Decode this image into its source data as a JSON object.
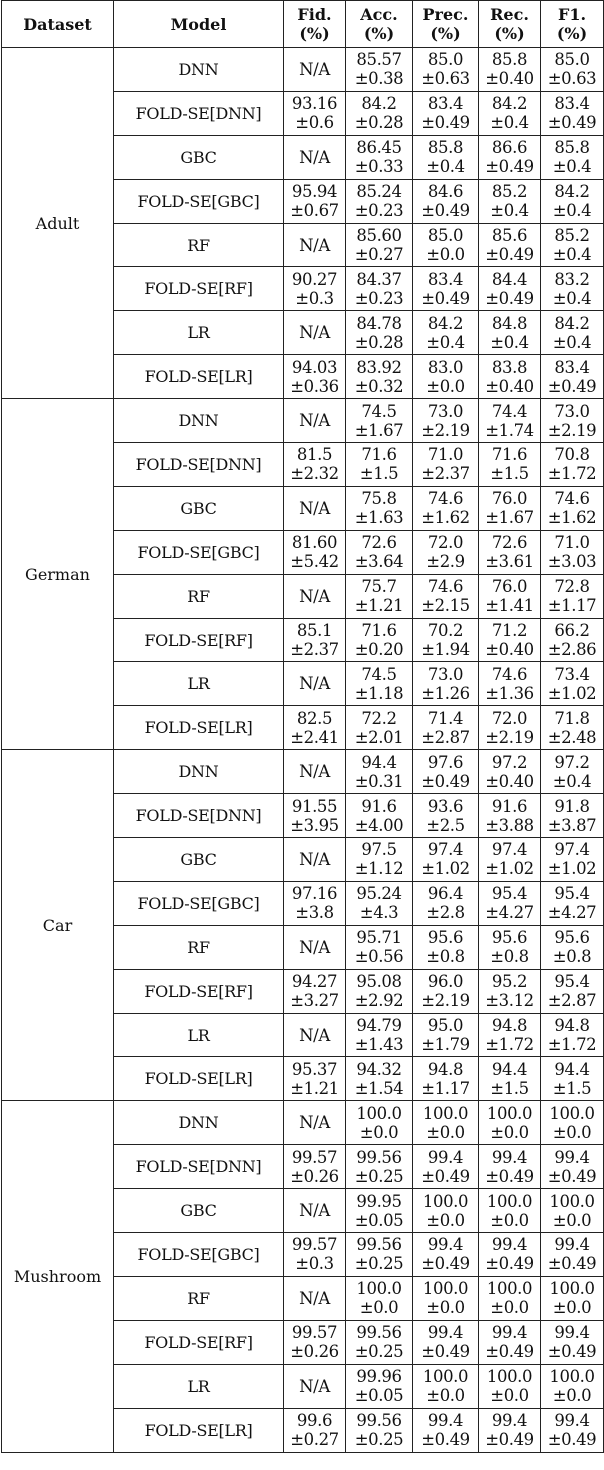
{
  "headers": [
    {
      "l1": "Dataset",
      "l2": ""
    },
    {
      "l1": "Model",
      "l2": ""
    },
    {
      "l1": "Fid.",
      "l2": "(%)"
    },
    {
      "l1": "Acc.",
      "l2": "(%)"
    },
    {
      "l1": "Prec.",
      "l2": "(%)"
    },
    {
      "l1": "Rec.",
      "l2": "(%)"
    },
    {
      "l1": "F1.",
      "l2": "(%)"
    }
  ],
  "datasets": [
    {
      "name": "Adult",
      "rows": [
        {
          "model": "DNN",
          "cells": [
            "N/A",
            [
              "85.57",
              "±0.38"
            ],
            [
              "85.0",
              "±0.63"
            ],
            [
              "85.8",
              "±0.40"
            ],
            [
              "85.0",
              "±0.63"
            ]
          ]
        },
        {
          "model": "FOLD-SE[DNN]",
          "cells": [
            [
              "93.16",
              "±0.6"
            ],
            [
              "84.2",
              "±0.28"
            ],
            [
              "83.4",
              "±0.49"
            ],
            [
              "84.2",
              "±0.4"
            ],
            [
              "83.4",
              "±0.49"
            ]
          ]
        },
        {
          "model": "GBC",
          "cells": [
            "N/A",
            [
              "86.45",
              "±0.33"
            ],
            [
              "85.8",
              "±0.4"
            ],
            [
              "86.6",
              "±0.49"
            ],
            [
              "85.8",
              "±0.4"
            ]
          ]
        },
        {
          "model": "FOLD-SE[GBC]",
          "cells": [
            [
              "95.94",
              "±0.67"
            ],
            [
              "85.24",
              "±0.23"
            ],
            [
              "84.6",
              "±0.49"
            ],
            [
              "85.2",
              "±0.4"
            ],
            [
              "84.2",
              "±0.4"
            ]
          ]
        },
        {
          "model": "RF",
          "cells": [
            "N/A",
            [
              "85.60",
              "±0.27"
            ],
            [
              "85.0",
              "±0.0"
            ],
            [
              "85.6",
              "±0.49"
            ],
            [
              "85.2",
              "±0.4"
            ]
          ]
        },
        {
          "model": "FOLD-SE[RF]",
          "cells": [
            [
              "90.27",
              "±0.3"
            ],
            [
              "84.37",
              "±0.23"
            ],
            [
              "83.4",
              "±0.49"
            ],
            [
              "84.4",
              "±0.49"
            ],
            [
              "83.2",
              "±0.4"
            ]
          ]
        },
        {
          "model": "LR",
          "cells": [
            "N/A",
            [
              "84.78",
              "±0.28"
            ],
            [
              "84.2",
              "±0.4"
            ],
            [
              "84.8",
              "±0.4"
            ],
            [
              "84.2",
              "±0.4"
            ]
          ]
        },
        {
          "model": "FOLD-SE[LR]",
          "cells": [
            [
              "94.03",
              "±0.36"
            ],
            [
              "83.92",
              "±0.32"
            ],
            [
              "83.0",
              "±0.0"
            ],
            [
              "83.8",
              "±0.40"
            ],
            [
              "83.4",
              "±0.49"
            ]
          ]
        }
      ]
    },
    {
      "name": "German",
      "rows": [
        {
          "model": "DNN",
          "cells": [
            "N/A",
            [
              "74.5",
              "±1.67"
            ],
            [
              "73.0",
              "±2.19"
            ],
            [
              "74.4",
              "±1.74"
            ],
            [
              "73.0",
              "±2.19"
            ]
          ]
        },
        {
          "model": "FOLD-SE[DNN]",
          "cells": [
            [
              "81.5",
              "±2.32"
            ],
            [
              "71.6",
              "±1.5"
            ],
            [
              "71.0",
              "±2.37"
            ],
            [
              "71.6",
              "±1.5"
            ],
            [
              "70.8",
              "±1.72"
            ]
          ]
        },
        {
          "model": "GBC",
          "cells": [
            "N/A",
            [
              "75.8",
              "±1.63"
            ],
            [
              "74.6",
              "±1.62"
            ],
            [
              "76.0",
              "±1.67"
            ],
            [
              "74.6",
              "±1.62"
            ]
          ]
        },
        {
          "model": "FOLD-SE[GBC]",
          "cells": [
            [
              "81.60",
              "±5.42"
            ],
            [
              "72.6",
              "±3.64"
            ],
            [
              "72.0",
              "±2.9"
            ],
            [
              "72.6",
              "±3.61"
            ],
            [
              "71.0",
              "±3.03"
            ]
          ]
        },
        {
          "model": "RF",
          "cells": [
            "N/A",
            [
              "75.7",
              "±1.21"
            ],
            [
              "74.6",
              "±2.15"
            ],
            [
              "76.0",
              "±1.41"
            ],
            [
              "72.8",
              "±1.17"
            ]
          ]
        },
        {
          "model": "FOLD-SE[RF]",
          "cells": [
            [
              "85.1",
              "±2.37"
            ],
            [
              "71.6",
              "±0.20"
            ],
            [
              "70.2",
              "±1.94"
            ],
            [
              "71.2",
              "±0.40"
            ],
            [
              "66.2",
              "±2.86"
            ]
          ]
        },
        {
          "model": "LR",
          "cells": [
            "N/A",
            [
              "74.5",
              "±1.18"
            ],
            [
              "73.0",
              "±1.26"
            ],
            [
              "74.6",
              "±1.36"
            ],
            [
              "73.4",
              "±1.02"
            ]
          ]
        },
        {
          "model": "FOLD-SE[LR]",
          "cells": [
            [
              "82.5",
              "±2.41"
            ],
            [
              "72.2",
              "±2.01"
            ],
            [
              "71.4",
              "±2.87"
            ],
            [
              "72.0",
              "±2.19"
            ],
            [
              "71.8",
              "±2.48"
            ]
          ]
        }
      ]
    },
    {
      "name": "Car",
      "rows": [
        {
          "model": "DNN",
          "cells": [
            "N/A",
            [
              "94.4",
              "±0.31"
            ],
            [
              "97.6",
              "±0.49"
            ],
            [
              "97.2",
              "±0.40"
            ],
            [
              "97.2",
              "±0.4"
            ]
          ]
        },
        {
          "model": "FOLD-SE[DNN]",
          "cells": [
            [
              "91.55",
              "±3.95"
            ],
            [
              "91.6",
              "±4.00"
            ],
            [
              "93.6",
              "±2.5"
            ],
            [
              "91.6",
              "±3.88"
            ],
            [
              "91.8",
              "±3.87"
            ]
          ]
        },
        {
          "model": "GBC",
          "cells": [
            "N/A",
            [
              "97.5",
              "±1.12"
            ],
            [
              "97.4",
              "±1.02"
            ],
            [
              "97.4",
              "±1.02"
            ],
            [
              "97.4",
              "±1.02"
            ]
          ]
        },
        {
          "model": "FOLD-SE[GBC]",
          "cells": [
            [
              "97.16",
              "±3.8"
            ],
            [
              "95.24",
              "±4.3"
            ],
            [
              "96.4",
              "±2.8"
            ],
            [
              "95.4",
              "±4.27"
            ],
            [
              "95.4",
              "±4.27"
            ]
          ]
        },
        {
          "model": "RF",
          "cells": [
            "N/A",
            [
              "95.71",
              "±0.56"
            ],
            [
              "95.6",
              "±0.8"
            ],
            [
              "95.6",
              "±0.8"
            ],
            [
              "95.6",
              "±0.8"
            ]
          ]
        },
        {
          "model": "FOLD-SE[RF]",
          "cells": [
            [
              "94.27",
              "±3.27"
            ],
            [
              "95.08",
              "±2.92"
            ],
            [
              "96.0",
              "±2.19"
            ],
            [
              "95.2",
              "±3.12"
            ],
            [
              "95.4",
              "±2.87"
            ]
          ]
        },
        {
          "model": "LR",
          "cells": [
            "N/A",
            [
              "94.79",
              "±1.43"
            ],
            [
              "95.0",
              "±1.79"
            ],
            [
              "94.8",
              "±1.72"
            ],
            [
              "94.8",
              "±1.72"
            ]
          ]
        },
        {
          "model": "FOLD-SE[LR]",
          "cells": [
            [
              "95.37",
              "±1.21"
            ],
            [
              "94.32",
              "±1.54"
            ],
            [
              "94.8",
              "±1.17"
            ],
            [
              "94.4",
              "±1.5"
            ],
            [
              "94.4",
              "±1.5"
            ]
          ]
        }
      ]
    },
    {
      "name": "Mushroom",
      "rows": [
        {
          "model": "DNN",
          "cells": [
            "N/A",
            [
              "100.0",
              "±0.0"
            ],
            [
              "100.0",
              "±0.0"
            ],
            [
              "100.0",
              "±0.0"
            ],
            [
              "100.0",
              "±0.0"
            ]
          ]
        },
        {
          "model": "FOLD-SE[DNN]",
          "cells": [
            [
              "99.57",
              "±0.26"
            ],
            [
              "99.56",
              "±0.25"
            ],
            [
              "99.4",
              "±0.49"
            ],
            [
              "99.4",
              "±0.49"
            ],
            [
              "99.4",
              "±0.49"
            ]
          ]
        },
        {
          "model": "GBC",
          "cells": [
            "N/A",
            [
              "99.95",
              "±0.05"
            ],
            [
              "100.0",
              "±0.0"
            ],
            [
              "100.0",
              "±0.0"
            ],
            [
              "100.0",
              "±0.0"
            ]
          ]
        },
        {
          "model": "FOLD-SE[GBC]",
          "cells": [
            [
              "99.57",
              "±0.3"
            ],
            [
              "99.56",
              "±0.25"
            ],
            [
              "99.4",
              "±0.49"
            ],
            [
              "99.4",
              "±0.49"
            ],
            [
              "99.4",
              "±0.49"
            ]
          ]
        },
        {
          "model": "RF",
          "cells": [
            "N/A",
            [
              "100.0",
              "±0.0"
            ],
            [
              "100.0",
              "±0.0"
            ],
            [
              "100.0",
              "±0.0"
            ],
            [
              "100.0",
              "±0.0"
            ]
          ]
        },
        {
          "model": "FOLD-SE[RF]",
          "cells": [
            [
              "99.57",
              "±0.26"
            ],
            [
              "99.56",
              "±0.25"
            ],
            [
              "99.4",
              "±0.49"
            ],
            [
              "99.4",
              "±0.49"
            ],
            [
              "99.4",
              "±0.49"
            ]
          ]
        },
        {
          "model": "LR",
          "cells": [
            "N/A",
            [
              "99.96",
              "±0.05"
            ],
            [
              "100.0",
              "±0.0"
            ],
            [
              "100.0",
              "±0.0"
            ],
            [
              "100.0",
              "±0.0"
            ]
          ]
        },
        {
          "model": "FOLD-SE[LR]",
          "cells": [
            [
              "99.6",
              "±0.27"
            ],
            [
              "99.56",
              "±0.25"
            ],
            [
              "99.4",
              "±0.49"
            ],
            [
              "99.4",
              "±0.49"
            ],
            [
              "99.4",
              "±0.49"
            ]
          ]
        }
      ]
    }
  ]
}
